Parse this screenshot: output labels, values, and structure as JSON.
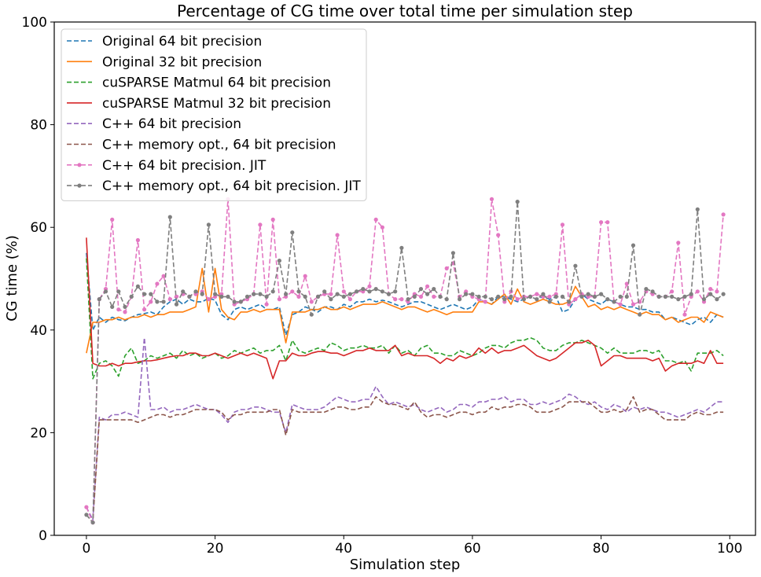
{
  "chart_data": {
    "type": "line",
    "title": "Percentage of CG time over total time per simulation step",
    "xlabel": "Simulation step",
    "ylabel": "CG time (%)",
    "xlim": [
      -5,
      104
    ],
    "ylim": [
      0,
      100
    ],
    "xticks": [
      0,
      20,
      40,
      60,
      80,
      100
    ],
    "yticks": [
      0,
      20,
      40,
      60,
      80,
      100
    ],
    "grid": false,
    "legend_position": "upper-left",
    "series": [
      {
        "name": "Original 64 bit precision",
        "color": "#1f77b4",
        "style": "dashed",
        "marker": false,
        "values": [
          55.0,
          40.0,
          42.5,
          41.5,
          42.5,
          42.0,
          41.8,
          42.5,
          43.0,
          43.2,
          43.5,
          43.0,
          44.5,
          45.5,
          46.0,
          45.0,
          46.0,
          45.5,
          45.5,
          46.2,
          45.8,
          43.0,
          42.0,
          44.0,
          44.5,
          44.0,
          44.5,
          45.0,
          44.0,
          44.0,
          44.5,
          39.0,
          43.0,
          43.5,
          44.5,
          44.0,
          43.5,
          44.5,
          44.5,
          44.0,
          45.0,
          44.5,
          45.5,
          45.5,
          46.0,
          45.5,
          45.8,
          45.5,
          45.0,
          44.5,
          45.0,
          45.5,
          45.5,
          45.0,
          44.5,
          44.0,
          44.5,
          45.0,
          44.5,
          44.0,
          44.5,
          46.0,
          45.5,
          45.0,
          46.5,
          46.5,
          46.0,
          45.5,
          46.0,
          46.5,
          46.0,
          46.5,
          46.0,
          46.5,
          43.5,
          44.0,
          46.0,
          47.0,
          46.0,
          45.5,
          45.0,
          46.0,
          45.5,
          45.0,
          44.5,
          44.5,
          44.0,
          44.0,
          43.5,
          43.5,
          42.0,
          42.5,
          42.0,
          41.5,
          41.0,
          42.0,
          42.5,
          41.5,
          43.0,
          42.5
        ]
      },
      {
        "name": "Original 32 bit precision",
        "color": "#ff7f0e",
        "style": "solid",
        "marker": false,
        "values": [
          35.5,
          41.5,
          41.5,
          42.0,
          42.0,
          42.5,
          42.0,
          42.5,
          42.5,
          43.0,
          42.5,
          43.0,
          43.0,
          43.5,
          43.5,
          43.5,
          44.0,
          44.5,
          52.0,
          43.5,
          52.0,
          44.0,
          42.5,
          42.0,
          43.5,
          43.5,
          44.0,
          43.5,
          44.0,
          44.0,
          44.0,
          37.5,
          43.5,
          43.5,
          43.5,
          44.0,
          44.0,
          44.5,
          44.0,
          44.0,
          44.5,
          44.0,
          44.5,
          45.0,
          45.0,
          45.0,
          45.5,
          45.0,
          44.5,
          44.0,
          44.5,
          44.5,
          44.0,
          43.5,
          44.0,
          43.5,
          43.0,
          43.5,
          43.5,
          43.5,
          43.5,
          45.5,
          45.5,
          45.0,
          46.0,
          47.0,
          45.0,
          48.0,
          45.5,
          45.0,
          45.5,
          46.0,
          45.5,
          45.0,
          45.0,
          45.5,
          48.5,
          46.5,
          44.5,
          45.0,
          44.0,
          44.5,
          44.0,
          44.5,
          44.0,
          43.5,
          43.0,
          43.5,
          43.0,
          43.0,
          42.0,
          42.5,
          41.5,
          42.0,
          42.5,
          42.5,
          41.5,
          43.5,
          43.0,
          42.5
        ]
      },
      {
        "name": "cuSPARSE Matmul 64 bit precision",
        "color": "#2ca02c",
        "style": "dashed",
        "marker": false,
        "values": [
          54.0,
          30.5,
          33.5,
          34.0,
          33.0,
          31.0,
          35.0,
          36.5,
          33.5,
          34.0,
          35.0,
          34.5,
          35.0,
          35.5,
          34.5,
          36.0,
          35.0,
          35.5,
          34.5,
          35.0,
          35.5,
          34.5,
          35.0,
          36.0,
          35.5,
          36.0,
          36.5,
          35.5,
          36.0,
          36.0,
          37.0,
          34.0,
          38.0,
          36.0,
          35.5,
          36.0,
          36.5,
          36.0,
          37.5,
          37.0,
          36.0,
          36.5,
          36.5,
          37.0,
          36.5,
          36.5,
          37.0,
          35.5,
          37.0,
          35.5,
          36.0,
          35.0,
          36.5,
          37.0,
          35.5,
          35.5,
          35.0,
          35.0,
          36.0,
          35.5,
          35.0,
          35.5,
          36.5,
          37.0,
          37.0,
          36.5,
          37.5,
          38.0,
          38.0,
          38.5,
          38.0,
          36.5,
          36.0,
          36.0,
          37.0,
          37.5,
          37.5,
          38.0,
          37.5,
          37.0,
          36.5,
          35.5,
          36.5,
          35.5,
          35.5,
          35.5,
          36.0,
          36.0,
          35.5,
          36.0,
          34.0,
          34.0,
          33.5,
          34.0,
          32.0,
          35.5,
          35.5,
          35.5,
          36.0,
          35.0
        ]
      },
      {
        "name": "cuSPARSE Matmul 32 bit precision",
        "color": "#d62728",
        "style": "solid",
        "marker": false,
        "values": [
          58.0,
          33.5,
          33.0,
          33.0,
          33.5,
          33.0,
          33.5,
          33.5,
          33.8,
          34.0,
          34.0,
          34.2,
          34.5,
          34.8,
          35.0,
          35.0,
          35.5,
          35.5,
          35.0,
          35.0,
          35.5,
          35.0,
          34.5,
          35.0,
          35.5,
          35.0,
          35.5,
          35.0,
          34.5,
          30.5,
          34.0,
          34.0,
          35.5,
          35.0,
          35.0,
          35.5,
          35.8,
          35.8,
          35.5,
          35.5,
          35.0,
          35.5,
          36.0,
          36.0,
          36.5,
          36.0,
          36.0,
          36.0,
          37.0,
          35.0,
          35.5,
          35.0,
          35.0,
          35.0,
          34.5,
          33.5,
          34.5,
          34.0,
          35.0,
          34.5,
          35.0,
          36.5,
          35.5,
          36.5,
          35.5,
          36.0,
          36.0,
          36.5,
          37.0,
          36.0,
          35.0,
          34.5,
          34.0,
          34.5,
          35.5,
          36.5,
          37.5,
          37.5,
          38.0,
          37.0,
          33.0,
          34.0,
          35.0,
          35.0,
          34.5,
          34.5,
          34.5,
          34.5,
          34.0,
          34.5,
          32.0,
          33.0,
          33.5,
          33.5,
          33.5,
          34.0,
          33.5,
          36.0,
          33.5,
          33.5
        ]
      },
      {
        "name": "C++ 64 bit precision",
        "color": "#9467bd",
        "style": "dashed",
        "marker": false,
        "values": [
          5.5,
          3.0,
          23.0,
          22.5,
          23.5,
          23.5,
          24.0,
          23.5,
          23.0,
          38.5,
          24.5,
          24.5,
          25.0,
          24.0,
          24.5,
          24.5,
          25.0,
          25.5,
          25.0,
          24.5,
          24.5,
          23.5,
          22.0,
          24.0,
          24.5,
          24.5,
          25.0,
          25.0,
          24.5,
          24.0,
          24.0,
          20.0,
          25.5,
          25.0,
          24.5,
          24.5,
          24.5,
          25.0,
          26.0,
          27.0,
          26.5,
          26.0,
          26.0,
          26.5,
          26.5,
          29.0,
          27.0,
          25.5,
          26.0,
          25.5,
          25.0,
          25.5,
          24.5,
          24.0,
          24.5,
          25.0,
          24.0,
          24.5,
          25.5,
          25.5,
          25.0,
          26.0,
          26.0,
          26.5,
          26.5,
          27.0,
          26.0,
          26.5,
          26.5,
          25.5,
          25.5,
          26.0,
          25.5,
          26.0,
          26.5,
          27.5,
          27.0,
          26.0,
          25.5,
          26.0,
          25.0,
          24.5,
          25.5,
          25.0,
          24.0,
          25.0,
          24.5,
          25.0,
          24.5,
          24.0,
          24.0,
          23.5,
          23.0,
          23.5,
          24.0,
          24.5,
          24.0,
          25.0,
          26.0,
          26.0
        ]
      },
      {
        "name": "C++ memory opt., 64 bit precision",
        "color": "#8c564b",
        "style": "dashed",
        "marker": false,
        "values": [
          4.0,
          2.5,
          22.5,
          22.5,
          22.5,
          22.5,
          22.5,
          22.5,
          22.0,
          22.5,
          23.0,
          23.5,
          23.5,
          23.0,
          23.5,
          23.5,
          24.0,
          24.5,
          24.5,
          24.5,
          24.5,
          24.0,
          22.5,
          23.5,
          23.5,
          24.0,
          24.0,
          24.0,
          24.0,
          24.5,
          24.5,
          19.5,
          24.5,
          24.0,
          24.0,
          24.0,
          24.0,
          24.0,
          24.5,
          25.0,
          25.0,
          24.5,
          24.5,
          25.0,
          25.0,
          27.0,
          26.0,
          25.5,
          25.5,
          25.0,
          24.5,
          26.0,
          24.0,
          23.0,
          23.5,
          23.5,
          23.0,
          23.5,
          24.0,
          24.0,
          23.5,
          24.0,
          24.0,
          25.0,
          24.5,
          25.0,
          25.0,
          25.5,
          25.5,
          25.0,
          24.0,
          24.0,
          24.0,
          24.5,
          25.0,
          26.0,
          26.0,
          26.0,
          26.0,
          25.0,
          24.0,
          24.0,
          24.5,
          24.0,
          24.5,
          27.0,
          24.0,
          24.5,
          24.5,
          23.5,
          22.5,
          22.5,
          22.5,
          22.5,
          23.5,
          24.0,
          23.5,
          23.5,
          24.0,
          24.0
        ]
      },
      {
        "name": "C++ 64 bit precision. JIT",
        "color": "#e377c2",
        "style": "dashed",
        "marker": true,
        "values": [
          5.5,
          2.5,
          46.0,
          48.0,
          61.5,
          44.0,
          43.5,
          46.5,
          57.5,
          44.0,
          45.5,
          49.0,
          50.5,
          46.0,
          46.5,
          47.0,
          46.5,
          47.0,
          47.5,
          46.0,
          46.5,
          47.0,
          65.5,
          45.0,
          45.5,
          46.0,
          47.0,
          60.5,
          45.0,
          61.5,
          46.0,
          46.5,
          47.5,
          46.5,
          50.5,
          45.5,
          46.5,
          47.0,
          47.0,
          58.5,
          47.5,
          46.0,
          47.5,
          47.5,
          48.5,
          61.5,
          60.0,
          47.0,
          46.0,
          46.0,
          45.5,
          47.0,
          46.5,
          48.5,
          46.5,
          46.5,
          52.0,
          53.0,
          46.5,
          47.5,
          46.5,
          46.0,
          45.5,
          65.5,
          58.5,
          45.5,
          47.5,
          46.0,
          46.5,
          46.5,
          47.0,
          46.5,
          46.5,
          47.0,
          60.5,
          45.0,
          46.0,
          47.0,
          46.5,
          46.5,
          61.0,
          61.0,
          45.5,
          45.0,
          49.0,
          45.0,
          45.5,
          47.5,
          47.0,
          46.5,
          46.5,
          47.5,
          57.0,
          43.0,
          46.5,
          47.5,
          45.5,
          48.0,
          47.5,
          62.5
        ]
      },
      {
        "name": "C++ memory opt., 64 bit precision. JIT",
        "color": "#7f7f7f",
        "style": "dashed",
        "marker": true,
        "values": [
          4.0,
          2.5,
          46.0,
          47.5,
          44.5,
          47.5,
          44.5,
          46.5,
          48.5,
          47.0,
          47.0,
          45.5,
          45.5,
          62.0,
          45.0,
          47.5,
          46.5,
          47.5,
          47.0,
          60.5,
          47.0,
          46.5,
          46.5,
          45.5,
          45.5,
          46.5,
          47.0,
          47.0,
          46.5,
          47.5,
          53.5,
          47.0,
          59.0,
          47.5,
          46.5,
          43.0,
          46.5,
          47.5,
          46.0,
          47.0,
          46.5,
          47.0,
          47.5,
          48.0,
          47.5,
          48.0,
          47.5,
          47.0,
          47.5,
          56.0,
          46.0,
          46.5,
          48.0,
          47.0,
          48.0,
          46.5,
          46.0,
          55.0,
          46.0,
          47.0,
          47.0,
          46.5,
          46.5,
          46.0,
          46.5,
          46.0,
          46.5,
          65.0,
          46.0,
          46.5,
          46.0,
          47.0,
          45.5,
          46.5,
          46.5,
          45.5,
          52.5,
          46.5,
          47.0,
          46.5,
          47.0,
          46.0,
          45.5,
          46.5,
          46.5,
          56.5,
          43.0,
          48.0,
          47.5,
          46.5,
          46.5,
          46.5,
          46.0,
          46.5,
          47.0,
          63.5,
          46.0,
          47.0,
          46.0,
          47.0
        ]
      }
    ]
  }
}
